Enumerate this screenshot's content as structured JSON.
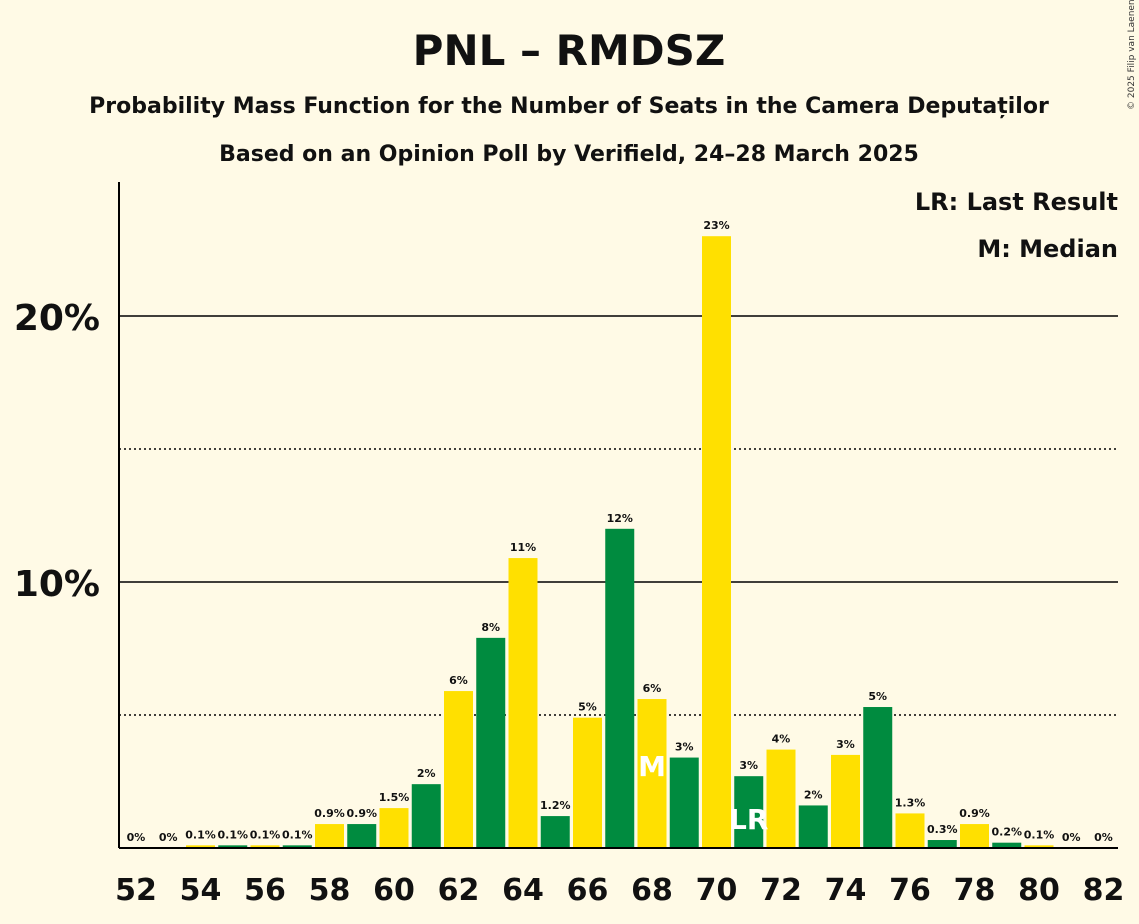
{
  "copyright": "© 2025 Filip van Laenen",
  "legend": {
    "lr": "LR: Last Result",
    "m": "M: Median"
  },
  "colors": {
    "background": "#FFFAE6",
    "yellow": "#FFE000",
    "green": "#008B3F",
    "axis": "#000000"
  },
  "chart_data": {
    "type": "bar",
    "title": "PNL – RMDSZ",
    "subtitle": "Probability Mass Function for the Number of Seats in the Camera Deputaților",
    "subtitle2": "Based on an Opinion Poll by Verifield, 24–28 March 2025",
    "x": [
      52,
      53,
      54,
      55,
      56,
      57,
      58,
      59,
      60,
      61,
      62,
      63,
      64,
      65,
      66,
      67,
      68,
      69,
      70,
      71,
      72,
      73,
      74,
      75,
      76,
      77,
      78,
      79,
      80,
      81,
      82
    ],
    "values": [
      0,
      0,
      0.1,
      0.1,
      0.1,
      0.1,
      0.9,
      0.9,
      1.5,
      2.4,
      5.9,
      7.9,
      10.9,
      1.2,
      4.9,
      12.0,
      5.6,
      3.4,
      23.0,
      2.7,
      3.7,
      1.6,
      3.5,
      5.3,
      1.3,
      0.3,
      0.9,
      0.2,
      0.1,
      0,
      0
    ],
    "labels": [
      "0%",
      "0%",
      "0.1%",
      "0.1%",
      "0.1%",
      "0.1%",
      "0.9%",
      "0.9%",
      "1.5%",
      "2%",
      "6%",
      "8%",
      "11%",
      "1.2%",
      "5%",
      "12%",
      "6%",
      "3%",
      "23%",
      "3%",
      "4%",
      "2%",
      "3%",
      "5%",
      "1.3%",
      "0.3%",
      "0.9%",
      "0.2%",
      "0.1%",
      "0%",
      "0%"
    ],
    "x_tick_labels": [
      "52",
      "54",
      "56",
      "58",
      "60",
      "62",
      "64",
      "66",
      "68",
      "70",
      "72",
      "74",
      "76",
      "78",
      "80",
      "82"
    ],
    "y_tick_labels": [
      "10%",
      "20%"
    ],
    "y_solid_lines": [
      10,
      20
    ],
    "y_dotted_lines": [
      5,
      15
    ],
    "ylim": [
      0,
      25
    ],
    "median_seat": 68,
    "median_marker": "M",
    "last_result_seat": 71,
    "last_result_marker": "LR"
  }
}
